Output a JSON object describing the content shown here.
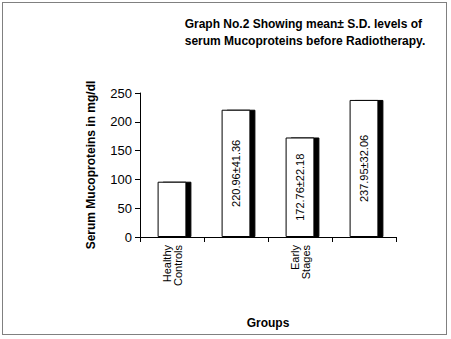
{
  "chart_data": {
    "type": "bar",
    "title": "Graph No.2 Showing mean± S.D. levels of serum Mucoproteins before Radiotherapy.",
    "x_label": "Groups",
    "y_label": "Serum Mucoproteins in mg/dl",
    "categories": [
      "Healthy Controls",
      null,
      "Early Stages",
      null
    ],
    "values": [
      96,
      220.96,
      172.76,
      237.95
    ],
    "value_labels": [
      null,
      "220.96±41.36",
      "172.76±22.18",
      "237.95±32.06"
    ],
    "data_labels": true,
    "color": "#ffffff",
    "ylim": [
      0,
      250
    ],
    "yticks": [
      0,
      50,
      100,
      150,
      200,
      250
    ],
    "grid": false
  }
}
